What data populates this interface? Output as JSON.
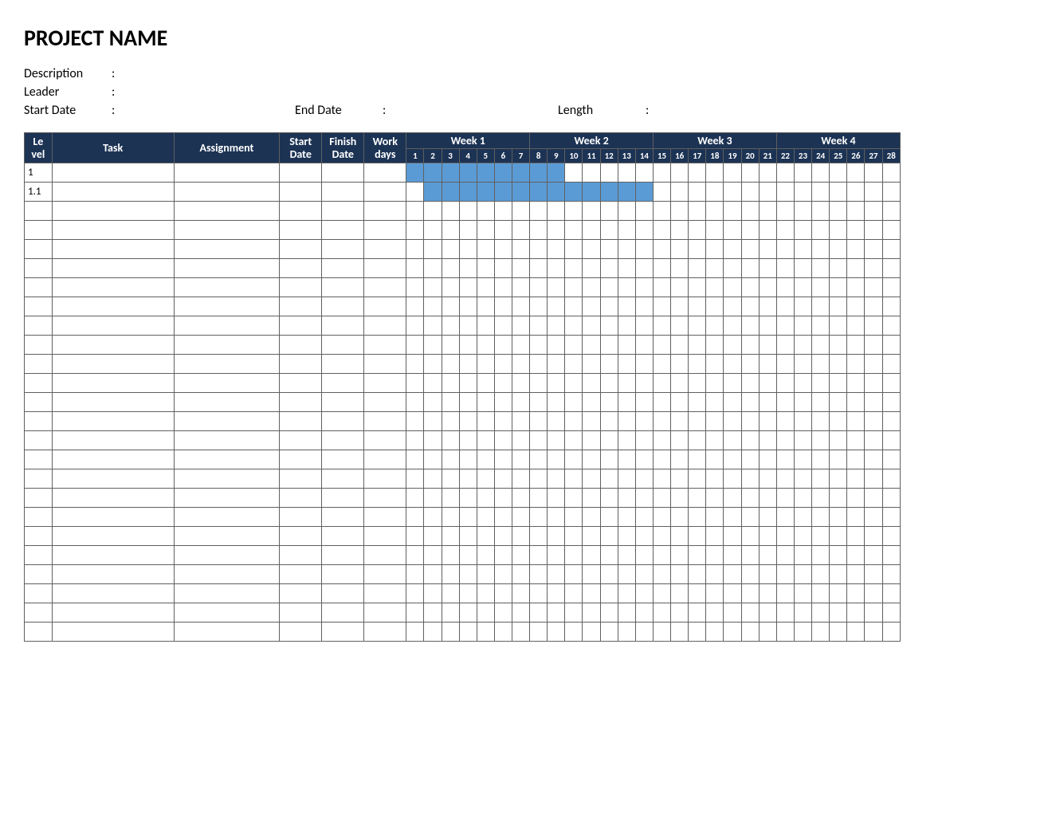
{
  "title": "PROJECT NAME",
  "meta": {
    "description_label": "Description",
    "description_value": "",
    "leader_label": "Leader",
    "leader_value": "",
    "start_label": "Start Date",
    "start_value": "",
    "end_label": "End Date",
    "end_value": "",
    "length_label": "Length",
    "length_value": "",
    "colon": ":"
  },
  "table": {
    "header_bg": "#1c3354",
    "header_fg": "#ffffff",
    "grid_color": "#606060",
    "fill_color": "#5b9bd5",
    "columns": {
      "level": "Le\nvel",
      "task": "Task",
      "assignment": "Assignment",
      "start": "Start Date",
      "finish": "Finish Date",
      "work": "Work days"
    },
    "weeks": [
      "Week 1",
      "Week 2",
      "Week 3",
      "Week 4"
    ],
    "days_per_week": 7,
    "day_numbers": [
      1,
      2,
      3,
      4,
      5,
      6,
      7,
      8,
      9,
      10,
      11,
      12,
      13,
      14,
      15,
      16,
      17,
      18,
      19,
      20,
      21,
      22,
      23,
      24,
      25,
      26,
      27,
      28
    ],
    "rows": [
      {
        "level": "1",
        "task": "",
        "assignment": "",
        "start": "",
        "finish": "",
        "work": "",
        "bar_start_day": 1,
        "bar_end_day": 9
      },
      {
        "level": "1.1",
        "task": "",
        "assignment": "",
        "start": "",
        "finish": "",
        "work": "",
        "bar_start_day": 2,
        "bar_end_day": 14
      },
      {
        "level": "",
        "task": "",
        "assignment": "",
        "start": "",
        "finish": "",
        "work": "",
        "bar_start_day": null,
        "bar_end_day": null
      },
      {
        "level": "",
        "task": "",
        "assignment": "",
        "start": "",
        "finish": "",
        "work": "",
        "bar_start_day": null,
        "bar_end_day": null
      },
      {
        "level": "",
        "task": "",
        "assignment": "",
        "start": "",
        "finish": "",
        "work": "",
        "bar_start_day": null,
        "bar_end_day": null
      },
      {
        "level": "",
        "task": "",
        "assignment": "",
        "start": "",
        "finish": "",
        "work": "",
        "bar_start_day": null,
        "bar_end_day": null
      },
      {
        "level": "",
        "task": "",
        "assignment": "",
        "start": "",
        "finish": "",
        "work": "",
        "bar_start_day": null,
        "bar_end_day": null
      },
      {
        "level": "",
        "task": "",
        "assignment": "",
        "start": "",
        "finish": "",
        "work": "",
        "bar_start_day": null,
        "bar_end_day": null
      },
      {
        "level": "",
        "task": "",
        "assignment": "",
        "start": "",
        "finish": "",
        "work": "",
        "bar_start_day": null,
        "bar_end_day": null
      },
      {
        "level": "",
        "task": "",
        "assignment": "",
        "start": "",
        "finish": "",
        "work": "",
        "bar_start_day": null,
        "bar_end_day": null
      },
      {
        "level": "",
        "task": "",
        "assignment": "",
        "start": "",
        "finish": "",
        "work": "",
        "bar_start_day": null,
        "bar_end_day": null
      },
      {
        "level": "",
        "task": "",
        "assignment": "",
        "start": "",
        "finish": "",
        "work": "",
        "bar_start_day": null,
        "bar_end_day": null
      },
      {
        "level": "",
        "task": "",
        "assignment": "",
        "start": "",
        "finish": "",
        "work": "",
        "bar_start_day": null,
        "bar_end_day": null
      },
      {
        "level": "",
        "task": "",
        "assignment": "",
        "start": "",
        "finish": "",
        "work": "",
        "bar_start_day": null,
        "bar_end_day": null
      },
      {
        "level": "",
        "task": "",
        "assignment": "",
        "start": "",
        "finish": "",
        "work": "",
        "bar_start_day": null,
        "bar_end_day": null
      },
      {
        "level": "",
        "task": "",
        "assignment": "",
        "start": "",
        "finish": "",
        "work": "",
        "bar_start_day": null,
        "bar_end_day": null
      },
      {
        "level": "",
        "task": "",
        "assignment": "",
        "start": "",
        "finish": "",
        "work": "",
        "bar_start_day": null,
        "bar_end_day": null
      },
      {
        "level": "",
        "task": "",
        "assignment": "",
        "start": "",
        "finish": "",
        "work": "",
        "bar_start_day": null,
        "bar_end_day": null
      },
      {
        "level": "",
        "task": "",
        "assignment": "",
        "start": "",
        "finish": "",
        "work": "",
        "bar_start_day": null,
        "bar_end_day": null
      },
      {
        "level": "",
        "task": "",
        "assignment": "",
        "start": "",
        "finish": "",
        "work": "",
        "bar_start_day": null,
        "bar_end_day": null
      },
      {
        "level": "",
        "task": "",
        "assignment": "",
        "start": "",
        "finish": "",
        "work": "",
        "bar_start_day": null,
        "bar_end_day": null
      },
      {
        "level": "",
        "task": "",
        "assignment": "",
        "start": "",
        "finish": "",
        "work": "",
        "bar_start_day": null,
        "bar_end_day": null
      },
      {
        "level": "",
        "task": "",
        "assignment": "",
        "start": "",
        "finish": "",
        "work": "",
        "bar_start_day": null,
        "bar_end_day": null
      },
      {
        "level": "",
        "task": "",
        "assignment": "",
        "start": "",
        "finish": "",
        "work": "",
        "bar_start_day": null,
        "bar_end_day": null
      },
      {
        "level": "",
        "task": "",
        "assignment": "",
        "start": "",
        "finish": "",
        "work": "",
        "bar_start_day": null,
        "bar_end_day": null
      }
    ]
  }
}
